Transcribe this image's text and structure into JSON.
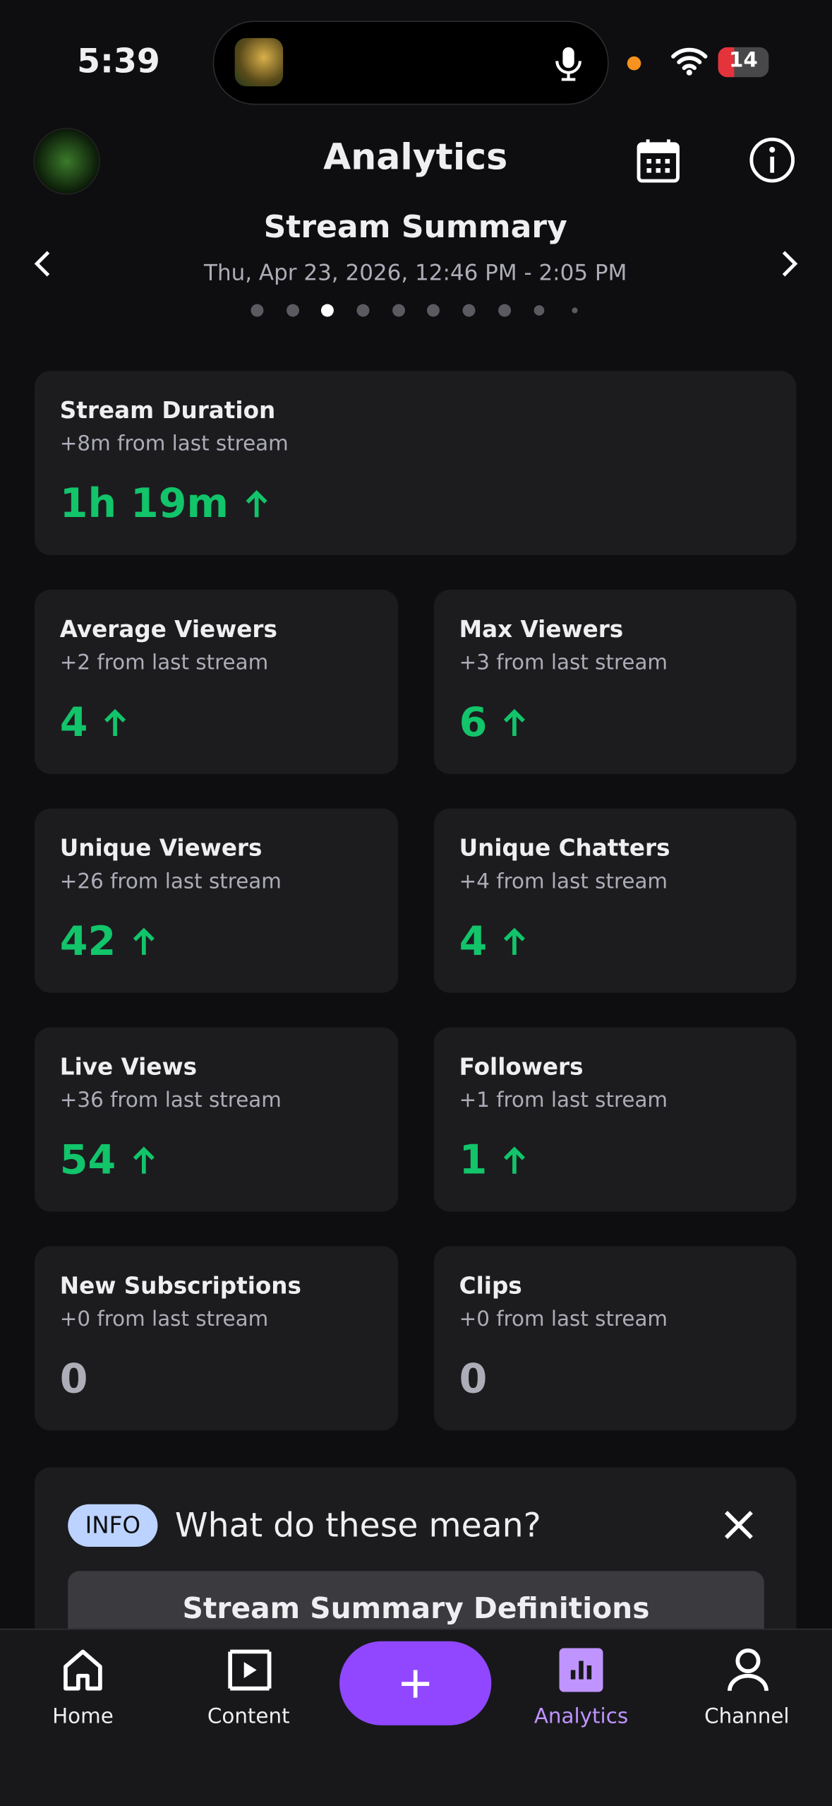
{
  "status": {
    "time": "5:39",
    "battery": "14"
  },
  "header": {
    "title": "Analytics"
  },
  "summary": {
    "title": "Stream Summary",
    "date": "Thu, Apr 23, 2026, 12:46 PM - 2:05 PM"
  },
  "cards": [
    {
      "title": "Stream Duration",
      "change": "+8m from last stream",
      "value": "1h 19m"
    },
    {
      "title": "Average Viewers",
      "change": "+2 from last stream",
      "value": "4"
    },
    {
      "title": "Max Viewers",
      "change": "+3 from last stream",
      "value": "6"
    },
    {
      "title": "Unique Viewers",
      "change": "+26 from last stream",
      "value": "42"
    },
    {
      "title": "Unique Chatters",
      "change": "+4 from last stream",
      "value": "4"
    },
    {
      "title": "Live Views",
      "change": "+36 from last stream",
      "value": "54"
    },
    {
      "title": "Followers",
      "change": "+1 from last stream",
      "value": "1"
    },
    {
      "title": "New Subscriptions",
      "change": "+0 from last stream",
      "value": "0"
    },
    {
      "title": "Clips",
      "change": "+0 from last stream",
      "value": "0"
    }
  ],
  "info": {
    "badge": "INFO",
    "question": "What do these mean?",
    "button": "Stream Summary Definitions"
  },
  "nav": [
    "Home",
    "Content",
    "Analytics",
    "Channel"
  ]
}
